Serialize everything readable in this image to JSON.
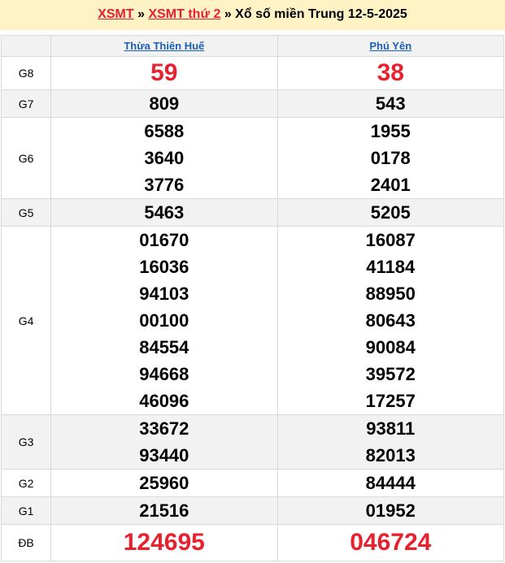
{
  "header": {
    "link1": "XSMT",
    "sep1": " » ",
    "link2": "XSMT thứ 2",
    "sep2": " » ",
    "title": "Xổ số miền Trung 12-5-2025"
  },
  "columns": [
    "Thừa Thiên Huế",
    "Phú Yên"
  ],
  "colors": {
    "highlight": "#e8212e",
    "link": "#1a5fb4",
    "banner": "#fff2c4"
  },
  "prizes": [
    {
      "label": "G8",
      "big": true,
      "values": [
        [
          "59"
        ],
        [
          "38"
        ]
      ]
    },
    {
      "label": "G7",
      "values": [
        [
          "809"
        ],
        [
          "543"
        ]
      ]
    },
    {
      "label": "G6",
      "values": [
        [
          "6588",
          "3640",
          "3776"
        ],
        [
          "1955",
          "0178",
          "2401"
        ]
      ]
    },
    {
      "label": "G5",
      "values": [
        [
          "5463"
        ],
        [
          "5205"
        ]
      ]
    },
    {
      "label": "G4",
      "values": [
        [
          "01670",
          "16036",
          "94103",
          "00100",
          "84554",
          "94668",
          "46096"
        ],
        [
          "16087",
          "41184",
          "88950",
          "80643",
          "90084",
          "39572",
          "17257"
        ]
      ]
    },
    {
      "label": "G3",
      "values": [
        [
          "33672",
          "93440"
        ],
        [
          "93811",
          "82013"
        ]
      ]
    },
    {
      "label": "G2",
      "values": [
        [
          "25960"
        ],
        [
          "84444"
        ]
      ]
    },
    {
      "label": "G1",
      "values": [
        [
          "21516"
        ],
        [
          "01952"
        ]
      ]
    },
    {
      "label": "ĐB",
      "big": true,
      "values": [
        [
          "124695"
        ],
        [
          "046724"
        ]
      ]
    }
  ]
}
